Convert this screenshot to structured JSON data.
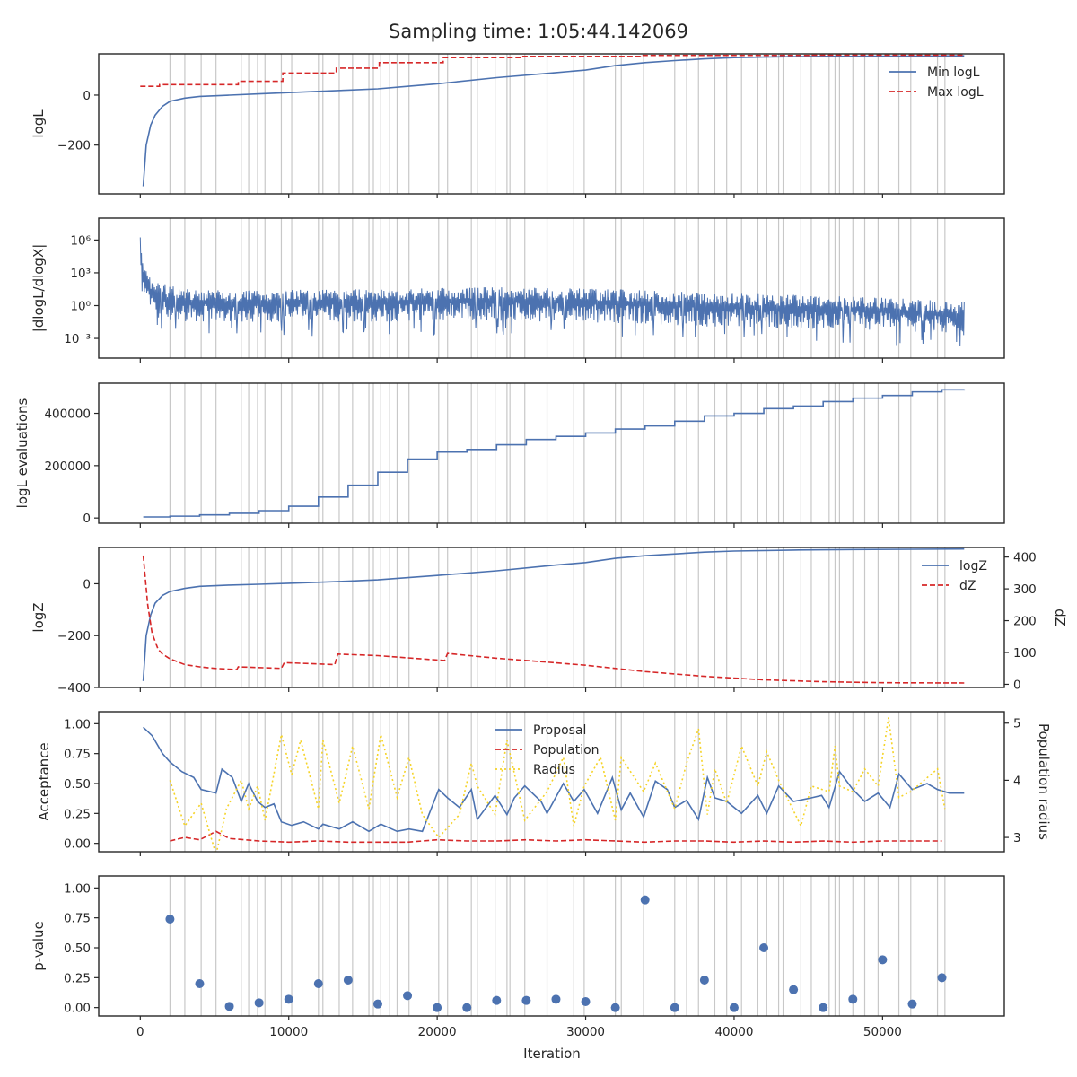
{
  "title": "Sampling time: 1:05:44.142069",
  "x_axis": {
    "label": "Iteration",
    "lim": [
      -2800,
      58200
    ],
    "ticks": [
      0,
      10000,
      20000,
      30000,
      40000,
      50000
    ],
    "tick_labels": [
      "0",
      "10000",
      "20000",
      "30000",
      "40000",
      "50000"
    ]
  },
  "colors": {
    "blue": "#4c72b0",
    "red": "#d62728",
    "yellow": "#f5d327",
    "grid": "#c8c8c8"
  },
  "insertion_markers": [
    2000,
    3000,
    4100,
    5100,
    6800,
    7300,
    7900,
    8400,
    9500,
    10200,
    12000,
    12300,
    13400,
    14300,
    15400,
    15700,
    16200,
    16800,
    17300,
    18100,
    20100,
    20700,
    22300,
    22700,
    23900,
    24700,
    24900,
    25900,
    27400,
    29200,
    29900,
    32000,
    32400,
    33900,
    36000,
    36800,
    37600,
    38700,
    39500,
    40500,
    41600,
    42200,
    43000,
    43300,
    44500,
    45200,
    46400,
    46800,
    47100,
    48000,
    48800,
    49700,
    51100,
    51900,
    53700,
    54200
  ],
  "chart_data": [
    {
      "type": "line",
      "ylabel": "logL",
      "ylim": [
        -395,
        165
      ],
      "yticks": [
        0,
        -200
      ],
      "ytick_labels": [
        "0",
        "−200"
      ],
      "legend": "top-right",
      "series": [
        {
          "name": "Min logL",
          "style": "solid",
          "color": "#4c72b0",
          "x": [
            200,
            400,
            700,
            1000,
            1500,
            2000,
            3000,
            4000,
            6000,
            8000,
            10000,
            12000,
            14000,
            16000,
            18000,
            20000,
            24000,
            28000,
            30000,
            32000,
            34000,
            36000,
            38000,
            40000,
            42000,
            44000,
            46000,
            50000,
            52000,
            55500
          ],
          "y": [
            -365,
            -200,
            -120,
            -80,
            -45,
            -25,
            -12,
            -5,
            0,
            5,
            10,
            15,
            20,
            25,
            35,
            45,
            70,
            90,
            100,
            118,
            130,
            138,
            145,
            150,
            152,
            154,
            155,
            156,
            156,
            157
          ]
        },
        {
          "name": "Max logL",
          "style": "dashed",
          "color": "#d62728",
          "x": [
            0,
            1300,
            1300,
            6600,
            6600,
            9600,
            9600,
            13200,
            13200,
            16100,
            16100,
            20400,
            20400,
            25600,
            25600,
            33700,
            33700,
            45200,
            45200,
            55500
          ],
          "y": [
            35,
            35,
            42,
            42,
            55,
            55,
            88,
            88,
            108,
            108,
            130,
            130,
            150,
            150,
            155,
            155,
            159,
            159,
            160,
            160
          ]
        }
      ]
    },
    {
      "type": "line",
      "ylabel": "|dlogL/dlogX|",
      "yscale": "log",
      "ylim": [
        -4.8,
        8.0
      ],
      "yticks": [
        6,
        3,
        0,
        -3
      ],
      "ytick_labels": [
        "10⁶",
        "10³",
        "10⁰",
        "10⁻³"
      ],
      "series": [
        {
          "name": "",
          "style": "noisy",
          "color": "#4c72b0",
          "x": [
            0,
            100,
            300,
            600,
            1000,
            2000,
            4000,
            8000,
            12000,
            16000,
            20000,
            24000,
            28000,
            32000,
            36000,
            40000,
            44000,
            48000,
            52000,
            55500
          ],
          "upper": [
            7.2,
            5.5,
            3.5,
            2.8,
            2.3,
            1.8,
            1.5,
            1.4,
            1.5,
            1.5,
            1.6,
            1.7,
            1.6,
            1.5,
            1.3,
            1.1,
            1.0,
            0.9,
            0.6,
            0.3
          ],
          "lower": [
            3.0,
            1.0,
            0.0,
            -0.5,
            -1.0,
            -1.4,
            -1.5,
            -1.5,
            -1.5,
            -1.5,
            -1.4,
            -1.4,
            -1.5,
            -1.6,
            -1.8,
            -2.0,
            -2.1,
            -2.2,
            -2.4,
            -2.8
          ]
        }
      ]
    },
    {
      "type": "line",
      "ylabel": "logL evaluations",
      "ylim": [
        -20000,
        515000
      ],
      "yticks": [
        400000,
        200000,
        0
      ],
      "ytick_labels": [
        "400000",
        "200000",
        "0"
      ],
      "series": [
        {
          "name": "",
          "style": "steps",
          "color": "#4c72b0",
          "x": [
            200,
            2000,
            4000,
            6000,
            8000,
            10000,
            12000,
            14000,
            16000,
            18000,
            20000,
            22000,
            24000,
            26000,
            28000,
            30000,
            32000,
            34000,
            36000,
            38000,
            40000,
            42000,
            44000,
            46000,
            48000,
            50000,
            52000,
            54000,
            55500
          ],
          "y": [
            4000,
            7000,
            12000,
            18000,
            28000,
            45000,
            80000,
            125000,
            175000,
            225000,
            252000,
            262000,
            280000,
            300000,
            312000,
            325000,
            340000,
            352000,
            370000,
            390000,
            400000,
            418000,
            428000,
            445000,
            458000,
            468000,
            482000,
            490000,
            492000
          ]
        }
      ]
    },
    {
      "type": "line",
      "ylabel": "logZ",
      "ylim": [
        -400,
        140
      ],
      "yticks": [
        0,
        -200,
        -400
      ],
      "ytick_labels": [
        "0",
        "−200",
        "−400"
      ],
      "y2label": "dZ",
      "y2lim": [
        -10,
        430
      ],
      "y2ticks": [
        400,
        300,
        200,
        100,
        0
      ],
      "y2tick_labels": [
        "400",
        "300",
        "200",
        "100",
        "0"
      ],
      "legend": "top-right",
      "series": [
        {
          "name": "logZ",
          "style": "solid",
          "color": "#4c72b0",
          "axis": "left",
          "x": [
            200,
            400,
            700,
            1000,
            1500,
            2000,
            3000,
            4000,
            6000,
            8000,
            10000,
            14000,
            16000,
            20000,
            24000,
            28000,
            30000,
            32000,
            34000,
            38000,
            40000,
            44000,
            48000,
            52000,
            55500
          ],
          "y": [
            -375,
            -200,
            -120,
            -75,
            -45,
            -30,
            -18,
            -10,
            -5,
            -2,
            2,
            10,
            15,
            32,
            50,
            72,
            82,
            98,
            108,
            122,
            126,
            130,
            132,
            133,
            134
          ]
        },
        {
          "name": "dZ",
          "style": "dashed",
          "color": "#d62728",
          "axis": "right",
          "x": [
            200,
            500,
            800,
            1200,
            1500,
            2000,
            3000,
            4000,
            5000,
            6500,
            6600,
            9500,
            9700,
            13100,
            13300,
            16000,
            19500,
            20500,
            20700,
            24000,
            26000,
            30000,
            34000,
            38000,
            42000,
            46000,
            50000,
            55500
          ],
          "y": [
            405,
            250,
            160,
            110,
            95,
            80,
            62,
            55,
            50,
            46,
            55,
            50,
            68,
            62,
            95,
            90,
            78,
            75,
            97,
            82,
            75,
            60,
            40,
            25,
            14,
            8,
            5,
            4
          ]
        }
      ]
    },
    {
      "type": "line",
      "ylabel": "Acceptance",
      "ylim": [
        -0.07,
        1.1
      ],
      "yticks": [
        1.0,
        0.75,
        0.5,
        0.25,
        0.0
      ],
      "ytick_labels": [
        "1.00",
        "0.75",
        "0.50",
        "0.25",
        "0.00"
      ],
      "y2label": "Population radius",
      "y2lim": [
        2.75,
        5.2
      ],
      "y2ticks": [
        5,
        4,
        3
      ],
      "y2tick_labels": [
        "5",
        "4",
        "3"
      ],
      "legend": "top-center",
      "series": [
        {
          "name": "Proposal",
          "style": "solid",
          "color": "#4c72b0",
          "axis": "left",
          "x": [
            200,
            800,
            1500,
            2000,
            2800,
            3600,
            4100,
            5100,
            5500,
            6200,
            6800,
            7300,
            7900,
            8400,
            9000,
            9500,
            10200,
            11000,
            12000,
            12300,
            13400,
            14300,
            15400,
            16200,
            17300,
            18100,
            19000,
            20100,
            20700,
            21500,
            22300,
            22700,
            23900,
            24700,
            25200,
            25900,
            27000,
            27400,
            28500,
            29200,
            29900,
            30800,
            31800,
            32400,
            33000,
            33900,
            34700,
            35500,
            36000,
            36800,
            37600,
            38200,
            38700,
            39500,
            40500,
            41600,
            42200,
            43000,
            44000,
            45200,
            45900,
            46400,
            47100,
            48000,
            48800,
            49700,
            50500,
            51100,
            52000,
            53000,
            53700,
            54500,
            55500
          ],
          "y": [
            0.97,
            0.9,
            0.75,
            0.68,
            0.6,
            0.55,
            0.45,
            0.42,
            0.62,
            0.55,
            0.35,
            0.5,
            0.35,
            0.3,
            0.33,
            0.18,
            0.15,
            0.18,
            0.12,
            0.16,
            0.12,
            0.18,
            0.1,
            0.16,
            0.1,
            0.12,
            0.1,
            0.45,
            0.38,
            0.3,
            0.45,
            0.2,
            0.4,
            0.24,
            0.38,
            0.48,
            0.35,
            0.25,
            0.5,
            0.35,
            0.45,
            0.25,
            0.55,
            0.28,
            0.42,
            0.22,
            0.52,
            0.45,
            0.3,
            0.36,
            0.2,
            0.55,
            0.38,
            0.35,
            0.25,
            0.4,
            0.25,
            0.48,
            0.35,
            0.38,
            0.4,
            0.3,
            0.6,
            0.45,
            0.35,
            0.42,
            0.3,
            0.58,
            0.45,
            0.5,
            0.45,
            0.42,
            0.42
          ]
        },
        {
          "name": "Population",
          "style": "dashed",
          "color": "#d62728",
          "axis": "left",
          "x": [
            2000,
            3000,
            4000,
            5100,
            6000,
            8000,
            10000,
            12000,
            14000,
            16000,
            18000,
            20000,
            22000,
            24000,
            26000,
            28000,
            30000,
            32000,
            34000,
            36000,
            38000,
            40000,
            42000,
            44000,
            46000,
            48000,
            50000,
            52000,
            54000
          ],
          "y": [
            0.02,
            0.05,
            0.03,
            0.1,
            0.04,
            0.02,
            0.01,
            0.02,
            0.01,
            0.01,
            0.01,
            0.03,
            0.02,
            0.02,
            0.03,
            0.02,
            0.03,
            0.02,
            0.01,
            0.02,
            0.02,
            0.01,
            0.02,
            0.01,
            0.02,
            0.01,
            0.02,
            0.02,
            0.02
          ]
        },
        {
          "name": "Radius",
          "style": "dotted",
          "color": "#f5d327",
          "axis": "right",
          "x": [
            2000,
            3000,
            4100,
            5100,
            5800,
            6800,
            7300,
            7900,
            8400,
            9500,
            10200,
            10800,
            12000,
            12300,
            13400,
            14300,
            15400,
            16200,
            17300,
            18100,
            19000,
            20100,
            21500,
            22300,
            22700,
            23900,
            24700,
            25900,
            27400,
            28500,
            29200,
            29900,
            31000,
            32000,
            32400,
            33900,
            34700,
            36000,
            36800,
            37600,
            38200,
            38700,
            39500,
            40500,
            41600,
            42200,
            43000,
            44500,
            45200,
            46400,
            46800,
            47100,
            48000,
            48800,
            49700,
            50400,
            51100,
            51900,
            53700,
            54200
          ],
          "y": [
            4.0,
            3.2,
            3.6,
            2.7,
            3.5,
            4.0,
            3.5,
            3.9,
            3.3,
            4.8,
            4.1,
            4.7,
            3.5,
            4.7,
            3.6,
            4.6,
            3.5,
            4.8,
            3.7,
            4.4,
            3.4,
            3.0,
            3.4,
            4.3,
            3.9,
            3.4,
            4.7,
            3.3,
            3.8,
            4.4,
            3.2,
            3.9,
            4.4,
            3.3,
            4.4,
            3.8,
            4.3,
            3.5,
            4.3,
            4.9,
            3.4,
            4.2,
            3.6,
            4.6,
            3.9,
            4.5,
            4.0,
            3.2,
            3.9,
            3.8,
            4.6,
            3.9,
            3.8,
            4.2,
            3.9,
            5.1,
            3.7,
            3.8,
            4.2,
            3.5
          ]
        }
      ]
    },
    {
      "type": "scatter",
      "ylabel": "p-value",
      "ylim": [
        -0.07,
        1.1
      ],
      "yticks": [
        1.0,
        0.75,
        0.5,
        0.25,
        0.0
      ],
      "ytick_labels": [
        "1.00",
        "0.75",
        "0.50",
        "0.25",
        "0.00"
      ],
      "series": [
        {
          "name": "",
          "style": "dots",
          "color": "#4c72b0",
          "x": [
            2000,
            4000,
            6000,
            8000,
            10000,
            12000,
            14000,
            16000,
            18000,
            20000,
            22000,
            24000,
            26000,
            28000,
            30000,
            32000,
            34000,
            36000,
            38000,
            40000,
            42000,
            44000,
            46000,
            48000,
            50000,
            52000,
            54000
          ],
          "y": [
            0.74,
            0.2,
            0.01,
            0.04,
            0.07,
            0.2,
            0.23,
            0.03,
            0.1,
            0.0,
            0.0,
            0.06,
            0.06,
            0.07,
            0.05,
            0.0,
            0.9,
            0.0,
            0.23,
            0.0,
            0.5,
            0.15,
            0.0,
            0.07,
            0.4,
            0.03,
            0.25
          ]
        }
      ]
    }
  ]
}
